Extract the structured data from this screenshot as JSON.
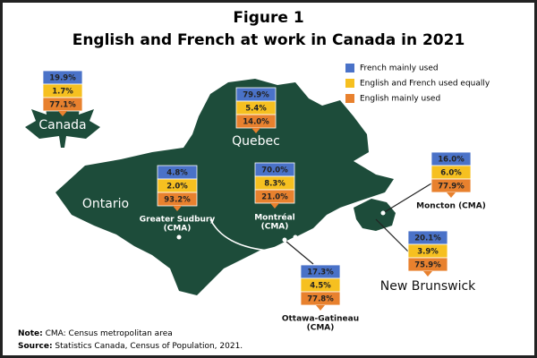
{
  "header": {
    "title": "Figure 1",
    "subtitle": "English and French at work in Canada in 2021"
  },
  "legend": [
    {
      "name": "French mainly used",
      "color": "#4a72c8"
    },
    {
      "name": "English and French used equally",
      "color": "#f6c020"
    },
    {
      "name": "English mainly used",
      "color": "#e8812e"
    }
  ],
  "regions": [
    {
      "label_lines": [
        "Canada"
      ],
      "values": [
        19.9,
        1.7,
        77.1
      ],
      "value_labels": [
        "19.9%",
        "1.7%",
        "77.1%"
      ]
    },
    {
      "label_lines": [
        "Quebec"
      ],
      "values": [
        79.9,
        5.4,
        14.0
      ],
      "value_labels": [
        "79.9%",
        "5.4%",
        "14.0%"
      ]
    },
    {
      "label_lines": [
        "Greater Sudbury",
        "(CMA)"
      ],
      "values": [
        4.8,
        2.0,
        93.2
      ],
      "value_labels": [
        "4.8%",
        "2.0%",
        "93.2%"
      ]
    },
    {
      "label_lines": [
        "Montréal",
        "(CMA)"
      ],
      "values": [
        70.0,
        8.3,
        21.0
      ],
      "value_labels": [
        "70.0%",
        "8.3%",
        "21.0%"
      ]
    },
    {
      "label_lines": [
        "Moncton (CMA)"
      ],
      "values": [
        16.0,
        6.0,
        77.9
      ],
      "value_labels": [
        "16.0%",
        "6.0%",
        "77.9%"
      ]
    },
    {
      "label_lines": [
        "New Brunswick"
      ],
      "values": [
        20.1,
        3.9,
        75.9
      ],
      "value_labels": [
        "20.1%",
        "3.9%",
        "75.9%"
      ]
    },
    {
      "label_lines": [
        "Ottawa-Gatineau",
        "(CMA)"
      ],
      "values": [
        17.3,
        4.5,
        77.8
      ],
      "value_labels": [
        "17.3%",
        "4.5%",
        "77.8%"
      ]
    }
  ],
  "map_labels": [
    "Ontario"
  ],
  "notes": [
    {
      "key": "Note:",
      "text": " CMA: Census metropolitan area"
    },
    {
      "key": "Source:",
      "text": " Statistics Canada, Census of Population, 2021."
    }
  ]
}
